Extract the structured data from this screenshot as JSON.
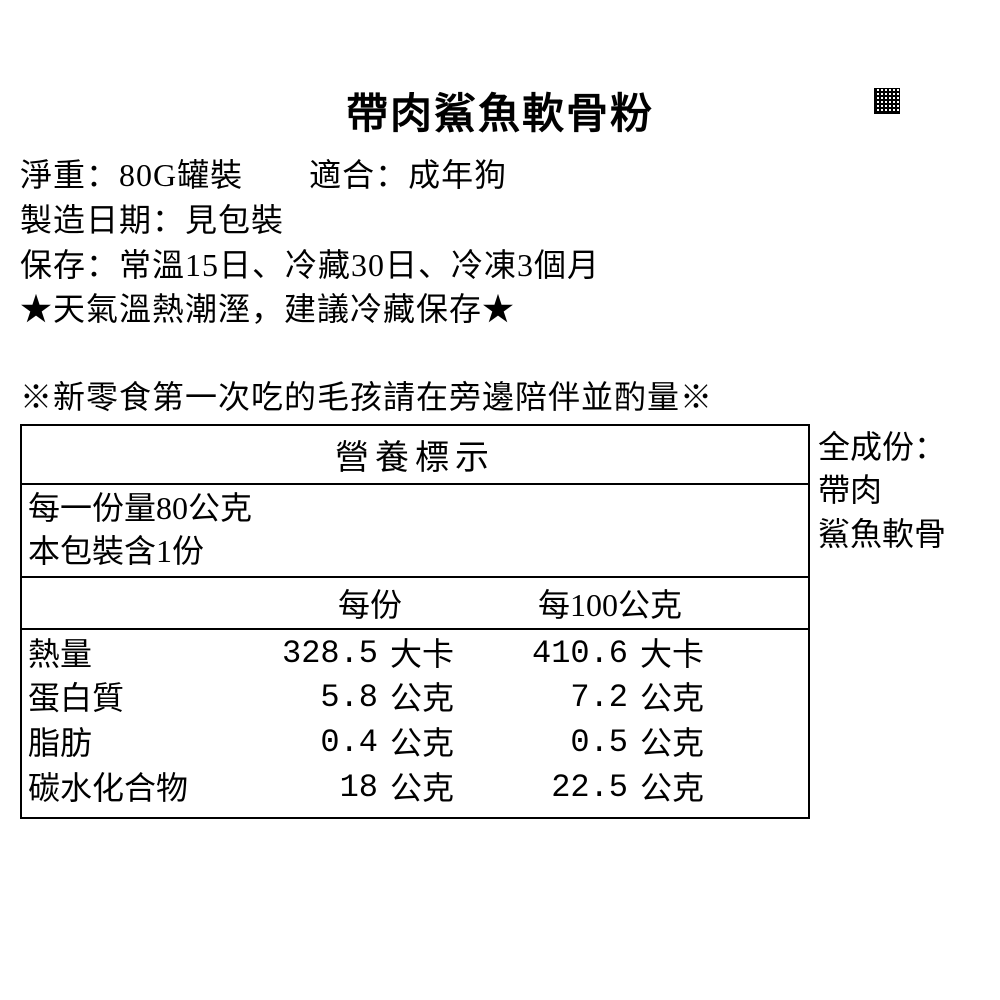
{
  "title": "帶肉鯊魚軟骨粉",
  "info": {
    "line1": "淨重：80G罐裝　　適合：成年狗",
    "line2": "製造日期：見包裝",
    "line3": "保存：常溫15日、冷藏30日、冷凍3個月",
    "line4": "★天氣溫熱潮溼，建議冷藏保存★"
  },
  "notice": "※新零食第一次吃的毛孩請在旁邊陪伴並酌量※",
  "nutrition": {
    "header": "營養標示",
    "serving_line1": "每一份量80公克",
    "serving_line2": "本包裝含1份",
    "col1": "每份",
    "col2": "每100公克",
    "rows": [
      {
        "label": "熱量",
        "v1": "328.5",
        "u1": "大卡",
        "v2": "410.6",
        "u2": "大卡"
      },
      {
        "label": "蛋白質",
        "v1": "5.8",
        "u1": "公克",
        "v2": "7.2",
        "u2": "公克"
      },
      {
        "label": "脂肪",
        "v1": "0.4",
        "u1": "公克",
        "v2": "0.5",
        "u2": "公克"
      },
      {
        "label": "碳水化合物",
        "v1": "18",
        "u1": "公克",
        "v2": "22.5",
        "u2": "公克"
      }
    ]
  },
  "ingredients": {
    "header": "全成份：",
    "line1": "帶肉",
    "line2": "鯊魚軟骨"
  }
}
